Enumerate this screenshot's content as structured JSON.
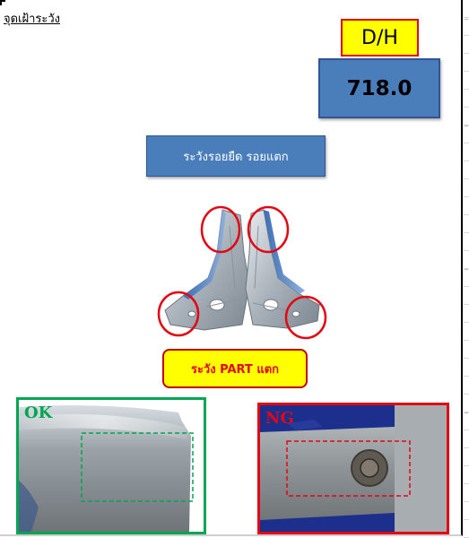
{
  "sheet": {
    "title": "จุดเฝ้าระวัง"
  },
  "measure": {
    "label": "D/H",
    "value": "718.0"
  },
  "warnings": {
    "defect_text": "ระวังรอยยืด รอยแตก",
    "part_text": "ระวัง PART แตก"
  },
  "photos": {
    "ok_label": "OK",
    "ng_label": "NG"
  },
  "colors": {
    "label_fill": "#ffff00",
    "label_border": "#e30613",
    "box_blue": "#4a7ebb",
    "ok_green": "#00a651",
    "ng_red": "#e30613"
  }
}
